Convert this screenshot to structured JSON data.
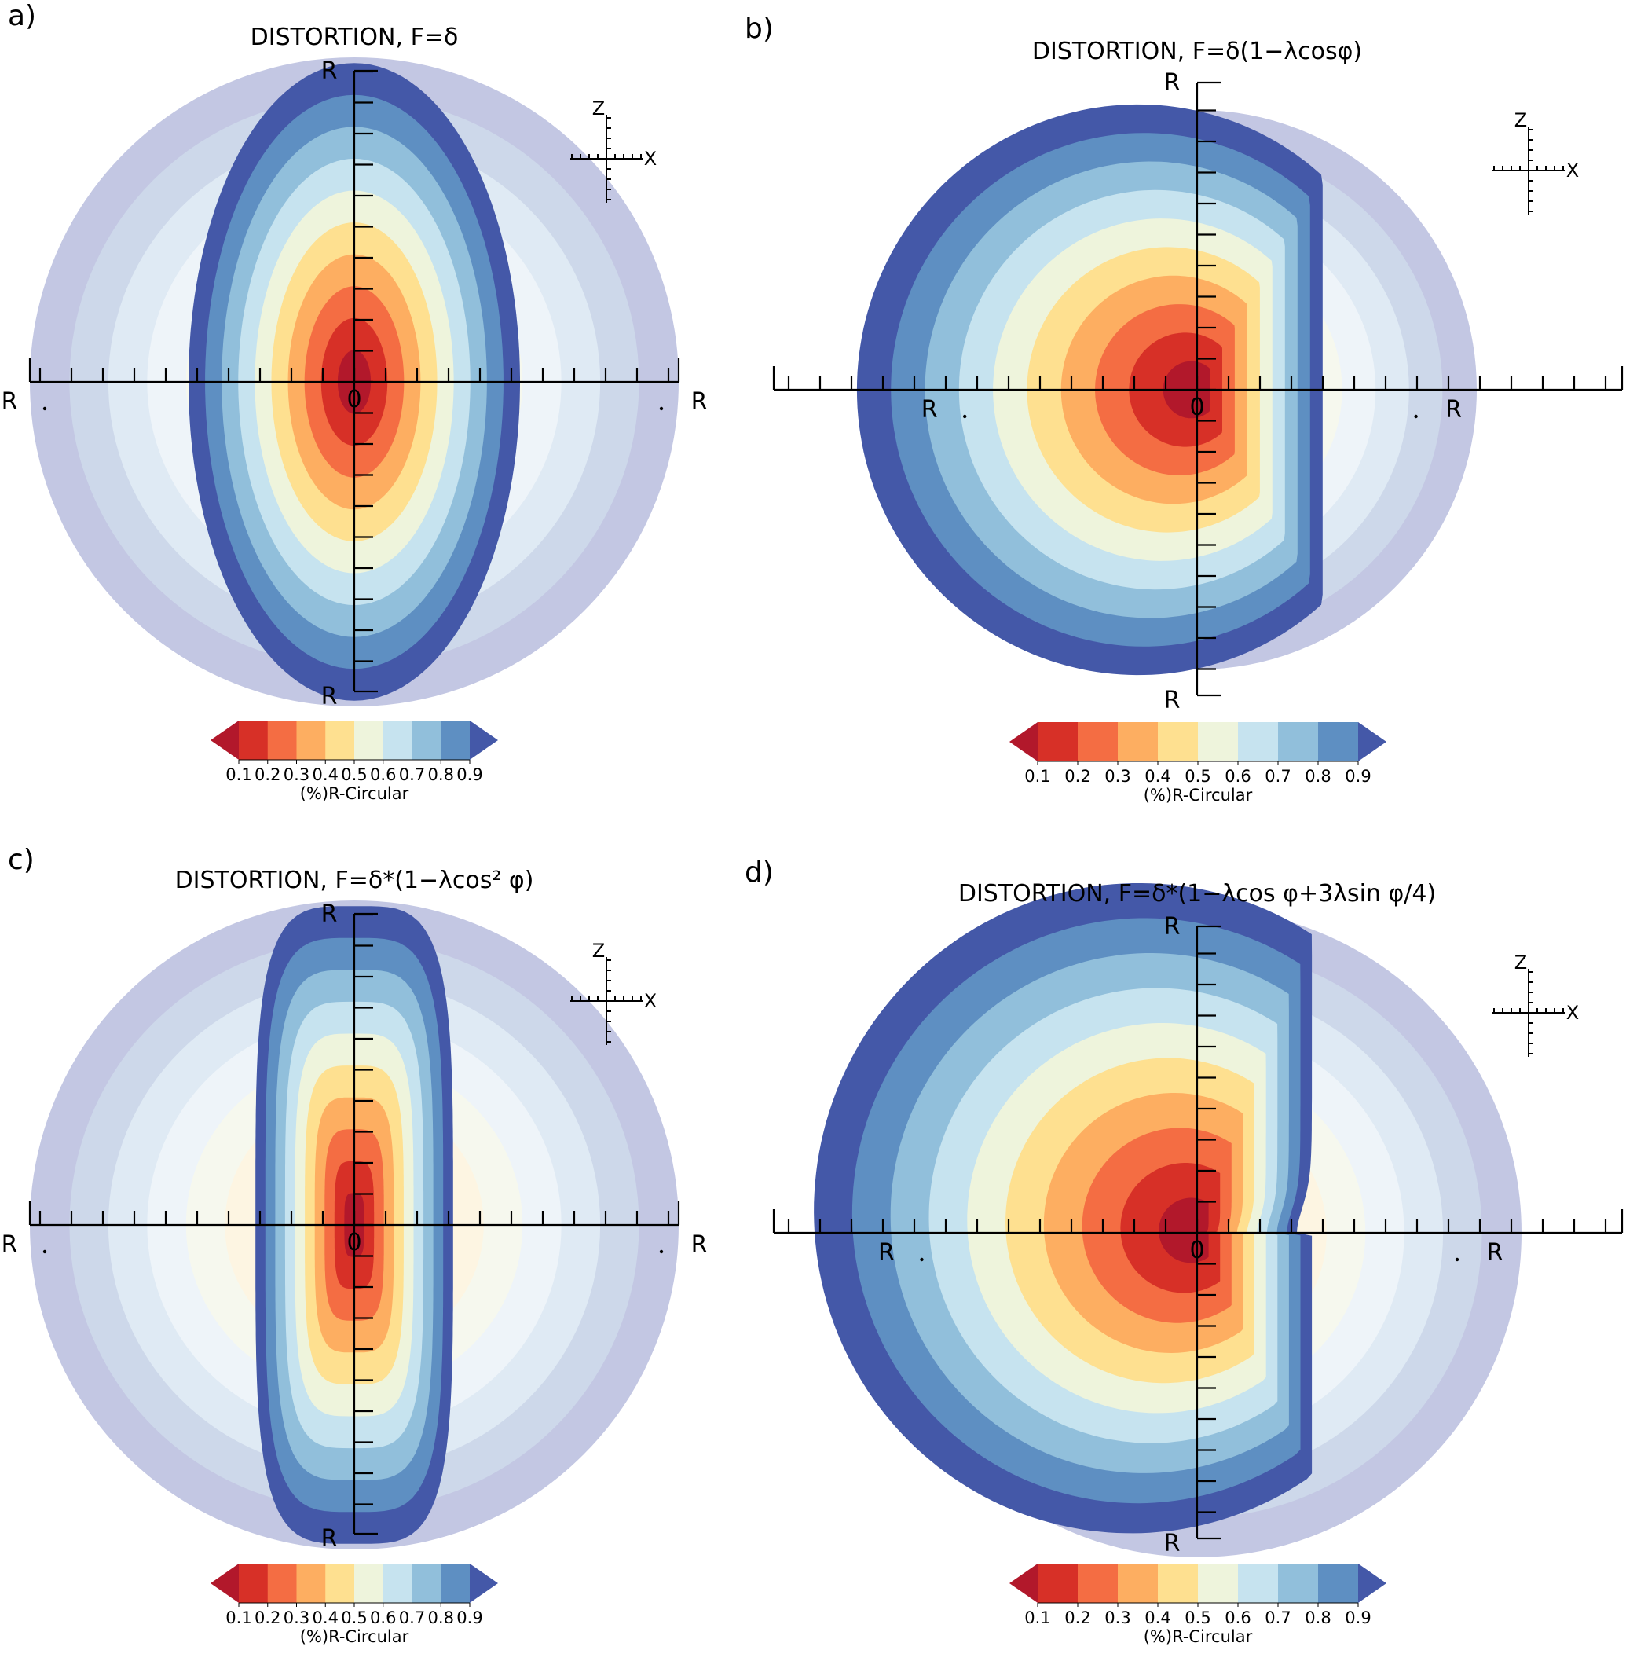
{
  "figure": {
    "panels": [
      {
        "id": "a",
        "panel_label": "a)",
        "title": "DISTORTION, F=δ",
        "distortion": "delta",
        "axis_end_label": "R",
        "origin_label": "0",
        "triad_labels": {
          "z": "Z",
          "x": "X"
        },
        "colorbar": {
          "tick_labels": [
            "0.1",
            "0.2",
            "0.3",
            "0.4",
            "0.5",
            "0.6",
            "0.7",
            "0.8",
            "0.9"
          ],
          "tick_style": "compact",
          "label": "(%)R-Circular"
        }
      },
      {
        "id": "b",
        "panel_label": "b)",
        "title": "DISTORTION, F=δ(1−λcosφ)",
        "distortion": "cos",
        "axis_end_label": "R",
        "origin_label": "0",
        "triad_labels": {
          "z": "Z",
          "x": "X"
        },
        "colorbar": {
          "tick_labels": [
            "0.1",
            "0.2",
            "0.3",
            "0.4",
            "0.5",
            "0.6",
            "0.7",
            "0.8",
            "0.9"
          ],
          "tick_style": "spaced",
          "label": "(%)R-Circular"
        }
      },
      {
        "id": "c",
        "panel_label": "c)",
        "title": "DISTORTION, F=δ*(1−λcos² φ)",
        "distortion": "cos2",
        "axis_end_label": "R",
        "origin_label": "0",
        "triad_labels": {
          "z": "Z",
          "x": "X"
        },
        "colorbar": {
          "tick_labels": [
            "0.1",
            "0.2",
            "0.3",
            "0.4",
            "0.5",
            "0.6",
            "0.7",
            "0.8",
            "0.9"
          ],
          "tick_style": "compact",
          "label": "(%)R-Circular"
        }
      },
      {
        "id": "d",
        "panel_label": "d)",
        "title": "DISTORTION, F=δ*(1−λcos φ+3λsin φ/4)",
        "distortion": "cos_sin",
        "axis_end_label": "R",
        "origin_label": "0",
        "triad_labels": {
          "z": "Z",
          "x": "X"
        },
        "colorbar": {
          "tick_labels": [
            "0.1",
            "0.2",
            "0.3",
            "0.4",
            "0.5",
            "0.6",
            "0.7",
            "0.8",
            "0.9"
          ],
          "tick_style": "spaced",
          "label": "(%)R-Circular"
        }
      }
    ]
  },
  "chart_data": [
    {
      "type": "heatmap",
      "title": "DISTORTION, F=δ",
      "colorbar_levels": [
        0.1,
        0.2,
        0.3,
        0.4,
        0.5,
        0.6,
        0.7,
        0.8,
        0.9
      ],
      "colorbar_extend": "both",
      "colorbar_label": "(%)R-Circular",
      "colormap": "RdYlBu",
      "level_colors": [
        "#b2182b",
        "#d73027",
        "#f46d43",
        "#fdae61",
        "#fee090",
        "#eef4dc",
        "#c6e3ef",
        "#91bfdb",
        "#5e8fc2",
        "#4458a8"
      ],
      "background_disk": {
        "shape": "circle",
        "levels_visible": "faded"
      }
    },
    {
      "type": "heatmap",
      "title": "DISTORTION, F=δ(1−λcosφ)",
      "colorbar_levels": [
        0.1,
        0.2,
        0.3,
        0.4,
        0.5,
        0.6,
        0.7,
        0.8,
        0.9
      ],
      "colorbar_extend": "both",
      "colorbar_label": "(%)R-Circular",
      "colormap": "RdYlBu",
      "level_colors": [
        "#b2182b",
        "#d73027",
        "#f46d43",
        "#fdae61",
        "#fee090",
        "#eef4dc",
        "#c6e3ef",
        "#91bfdb",
        "#5e8fc2",
        "#4458a8"
      ]
    },
    {
      "type": "heatmap",
      "title": "DISTORTION, F=δ*(1−λcos² φ)",
      "colorbar_levels": [
        0.1,
        0.2,
        0.3,
        0.4,
        0.5,
        0.6,
        0.7,
        0.8,
        0.9
      ],
      "colorbar_extend": "both",
      "colorbar_label": "(%)R-Circular",
      "colormap": "RdYlBu",
      "level_colors": [
        "#b2182b",
        "#d73027",
        "#f46d43",
        "#fdae61",
        "#fee090",
        "#eef4dc",
        "#c6e3ef",
        "#91bfdb",
        "#5e8fc2",
        "#4458a8"
      ]
    },
    {
      "type": "heatmap",
      "title": "DISTORTION, F=δ*(1−λcos φ+3λsin φ/4)",
      "colorbar_levels": [
        0.1,
        0.2,
        0.3,
        0.4,
        0.5,
        0.6,
        0.7,
        0.8,
        0.9
      ],
      "colorbar_extend": "both",
      "colorbar_label": "(%)R-Circular",
      "colormap": "RdYlBu",
      "level_colors": [
        "#b2182b",
        "#d73027",
        "#f46d43",
        "#fdae61",
        "#fee090",
        "#eef4dc",
        "#c6e3ef",
        "#91bfdb",
        "#5e8fc2",
        "#4458a8"
      ]
    }
  ]
}
